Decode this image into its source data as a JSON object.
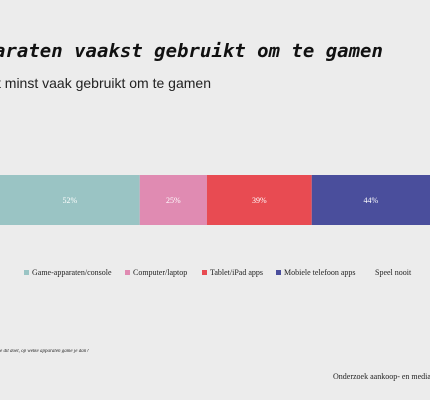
{
  "title": "araten vaakst gebruikt om te gamen",
  "subtitle": "t minst vaak gebruikt om te gamen",
  "question": "e dit doet, op welke apparaten game je dan?",
  "source": "Onderzoek aankoop- en media",
  "chart_data": {
    "type": "bar",
    "orientation": "horizontal-stacked",
    "series": [
      {
        "name": "Game-apparaten/console",
        "value": 52,
        "label": "52%",
        "color": "#9ac4c4"
      },
      {
        "name": "Computer/laptop",
        "value": 25,
        "label": "25%",
        "color": "#e08bb2"
      },
      {
        "name": "Tablet/iPad apps",
        "value": 39,
        "label": "39%",
        "color": "#e84b52"
      },
      {
        "name": "Mobiele telefoon apps",
        "value": 44,
        "label": "44%",
        "color": "#4a4e9c"
      },
      {
        "name": "Speel nooit",
        "value": null,
        "label": "",
        "color": "#ececec"
      }
    ],
    "legend_position": "bottom",
    "grid": false
  }
}
